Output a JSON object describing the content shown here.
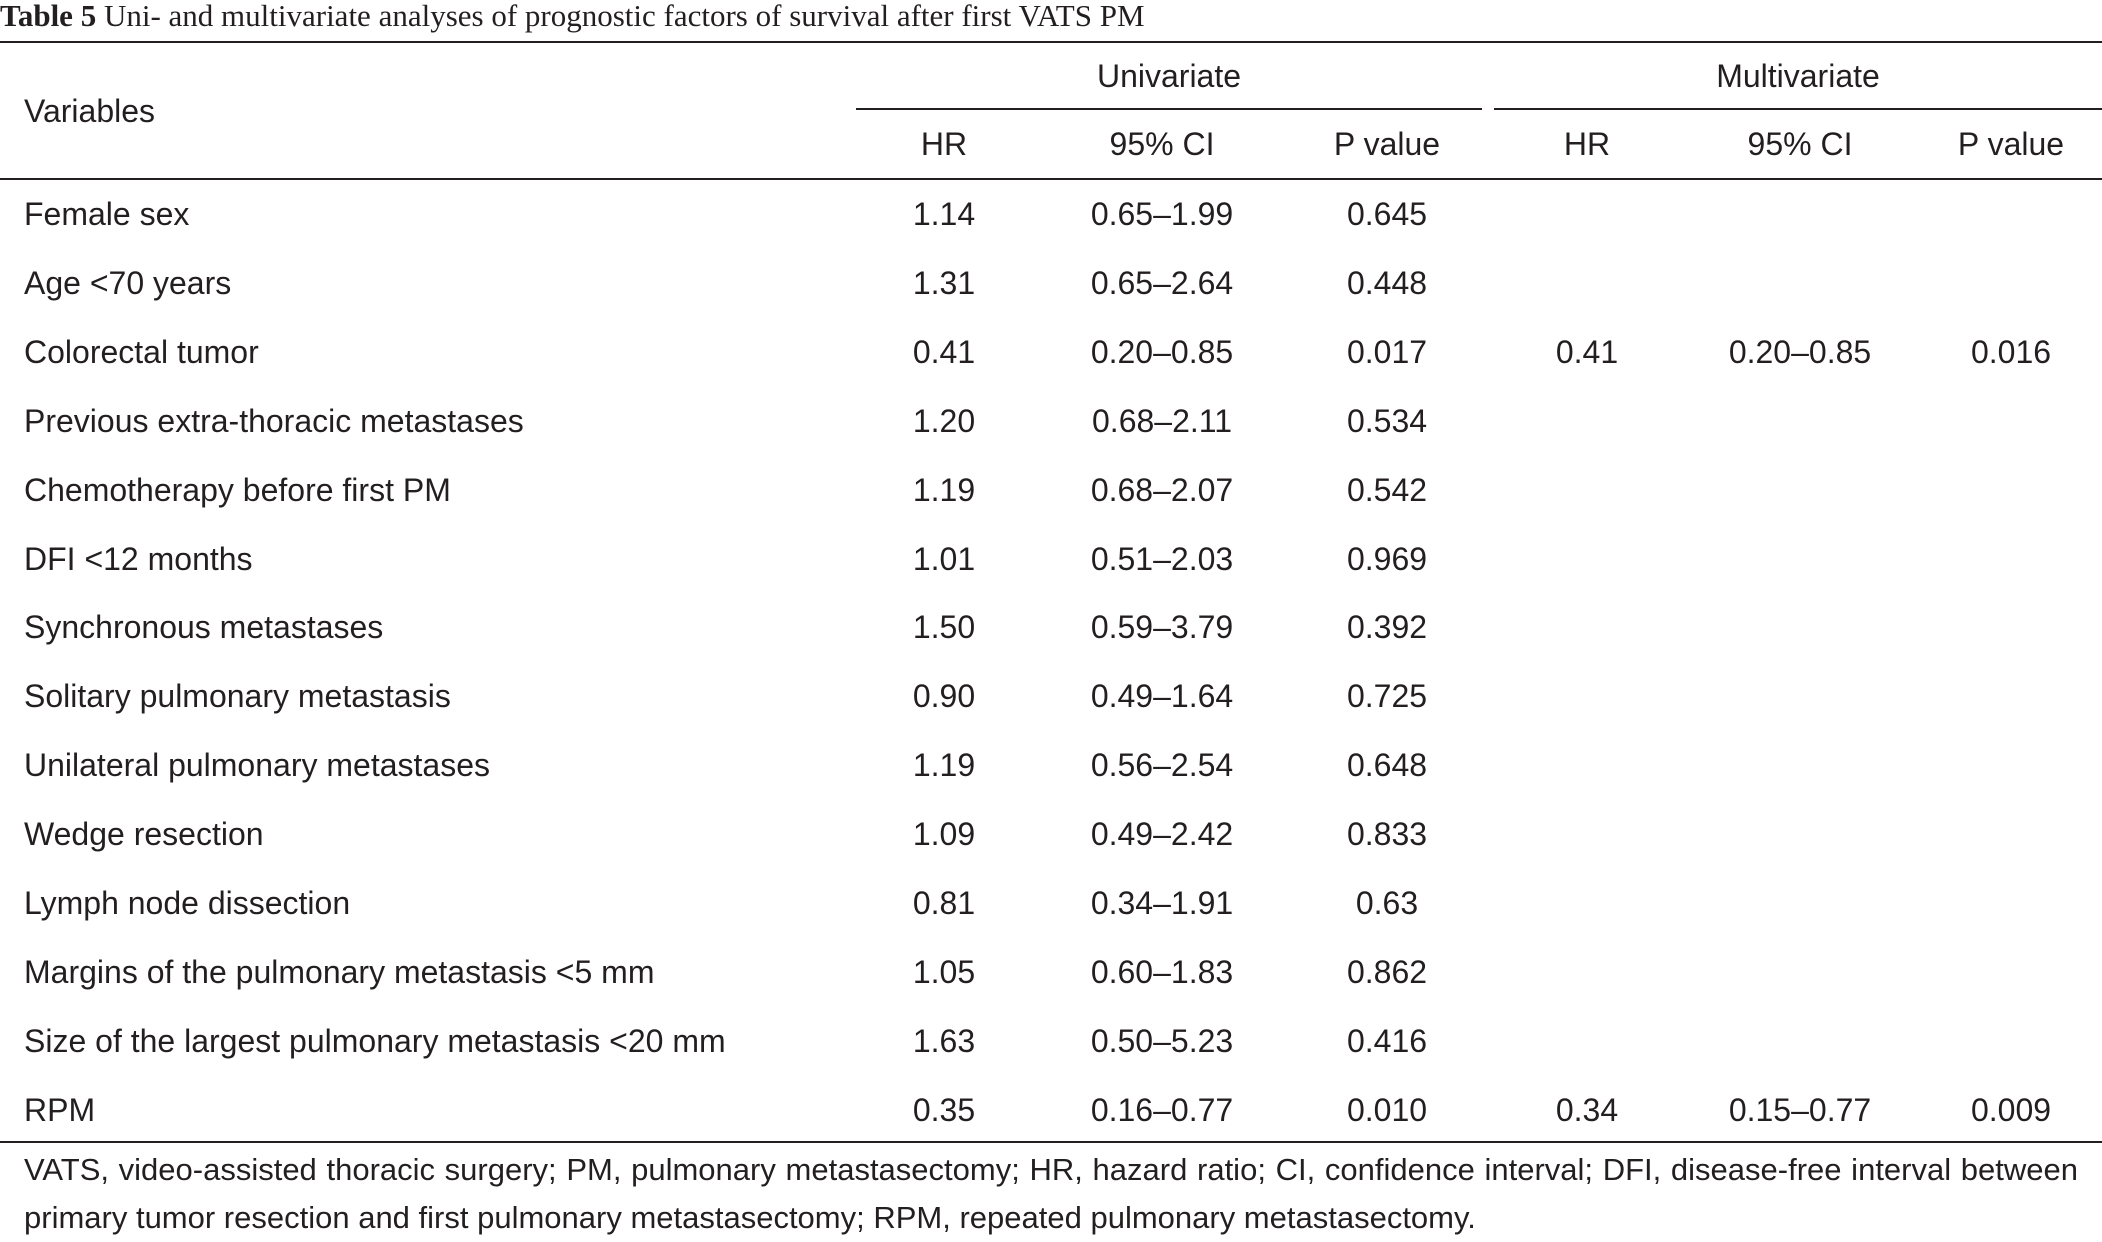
{
  "caption": {
    "label": "Table 5",
    "text": "Uni- and multivariate analyses of prognostic factors of survival after first VATS PM"
  },
  "header": {
    "variables": "Variables",
    "univariate": "Univariate",
    "multivariate": "Multivariate",
    "sub": [
      "HR",
      "95% CI",
      "P value",
      "HR",
      "95% CI",
      "P value"
    ]
  },
  "rows": [
    {
      "variable": "Female sex",
      "uni_hr": "1.14",
      "uni_ci": "0.65–1.99",
      "uni_p": "0.645",
      "multi_hr": "",
      "multi_ci": "",
      "multi_p": ""
    },
    {
      "variable": "Age <70 years",
      "uni_hr": "1.31",
      "uni_ci": "0.65–2.64",
      "uni_p": "0.448",
      "multi_hr": "",
      "multi_ci": "",
      "multi_p": ""
    },
    {
      "variable": "Colorectal tumor",
      "uni_hr": "0.41",
      "uni_ci": "0.20–0.85",
      "uni_p": "0.017",
      "multi_hr": "0.41",
      "multi_ci": "0.20–0.85",
      "multi_p": "0.016"
    },
    {
      "variable": "Previous extra-thoracic metastases",
      "uni_hr": "1.20",
      "uni_ci": "0.68–2.11",
      "uni_p": "0.534",
      "multi_hr": "",
      "multi_ci": "",
      "multi_p": ""
    },
    {
      "variable": "Chemotherapy before first PM",
      "uni_hr": "1.19",
      "uni_ci": "0.68–2.07",
      "uni_p": "0.542",
      "multi_hr": "",
      "multi_ci": "",
      "multi_p": ""
    },
    {
      "variable": "DFI <12 months",
      "uni_hr": "1.01",
      "uni_ci": "0.51–2.03",
      "uni_p": "0.969",
      "multi_hr": "",
      "multi_ci": "",
      "multi_p": ""
    },
    {
      "variable": "Synchronous metastases",
      "uni_hr": "1.50",
      "uni_ci": "0.59–3.79",
      "uni_p": "0.392",
      "multi_hr": "",
      "multi_ci": "",
      "multi_p": ""
    },
    {
      "variable": "Solitary pulmonary metastasis",
      "uni_hr": "0.90",
      "uni_ci": "0.49–1.64",
      "uni_p": "0.725",
      "multi_hr": "",
      "multi_ci": "",
      "multi_p": ""
    },
    {
      "variable": "Unilateral pulmonary metastases",
      "uni_hr": "1.19",
      "uni_ci": "0.56–2.54",
      "uni_p": "0.648",
      "multi_hr": "",
      "multi_ci": "",
      "multi_p": ""
    },
    {
      "variable": "Wedge resection",
      "uni_hr": "1.09",
      "uni_ci": "0.49–2.42",
      "uni_p": "0.833",
      "multi_hr": "",
      "multi_ci": "",
      "multi_p": ""
    },
    {
      "variable": "Lymph node dissection",
      "uni_hr": "0.81",
      "uni_ci": "0.34–1.91",
      "uni_p": "0.63",
      "multi_hr": "",
      "multi_ci": "",
      "multi_p": ""
    },
    {
      "variable": "Margins of the pulmonary metastasis <5 mm",
      "uni_hr": "1.05",
      "uni_ci": "0.60–1.83",
      "uni_p": "0.862",
      "multi_hr": "",
      "multi_ci": "",
      "multi_p": ""
    },
    {
      "variable": "Size of the largest pulmonary metastasis <20 mm",
      "uni_hr": "1.63",
      "uni_ci": "0.50–5.23",
      "uni_p": "0.416",
      "multi_hr": "",
      "multi_ci": "",
      "multi_p": ""
    },
    {
      "variable": "RPM",
      "uni_hr": "0.35",
      "uni_ci": "0.16–0.77",
      "uni_p": "0.010",
      "multi_hr": "0.34",
      "multi_ci": "0.15–0.77",
      "multi_p": "0.009"
    }
  ],
  "footnote": "VATS, video-assisted thoracic surgery; PM, pulmonary metastasectomy; HR, hazard ratio; CI, confidence interval; DFI, disease-free interval between primary tumor resection and first pulmonary metastasectomy; RPM, repeated pulmonary metastasectomy."
}
